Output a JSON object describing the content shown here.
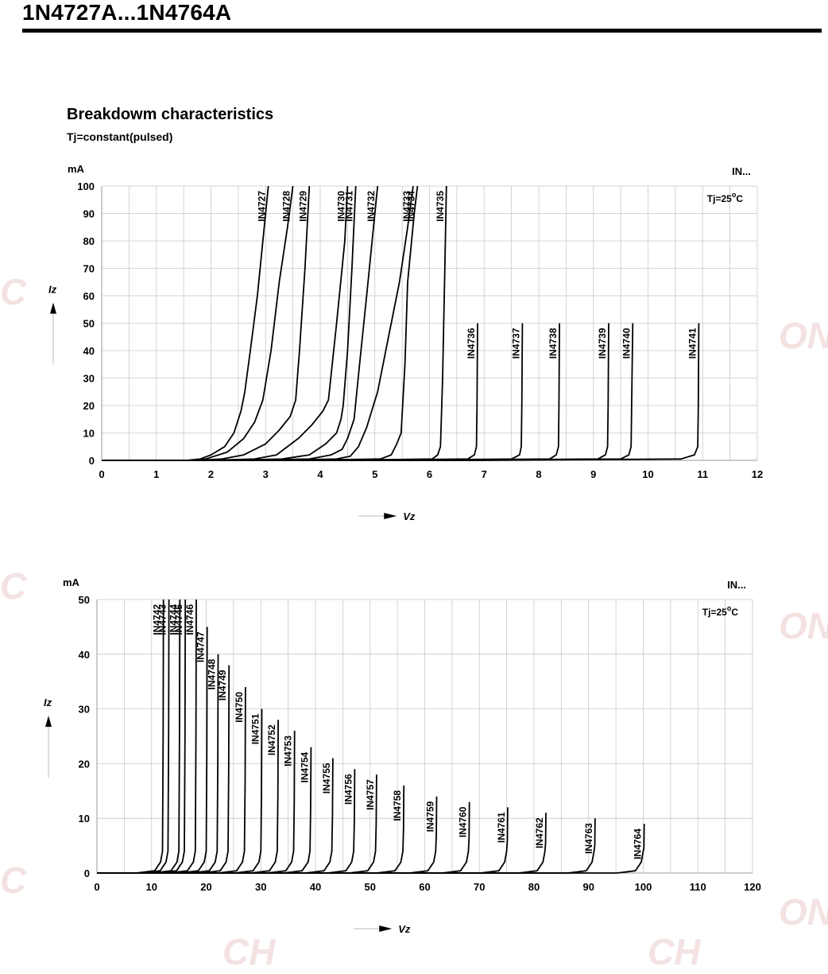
{
  "page": {
    "title": "1N4727A...1N4764A",
    "section_title": "Breakdowm characteristics",
    "section_subtitle": "Tj=constant(pulsed)",
    "watermarks": [
      "C",
      "ON",
      "C",
      "ON",
      "C",
      "ON",
      "CH",
      "CH"
    ]
  },
  "chart_data": [
    {
      "type": "line",
      "corner_label": "IN...",
      "condition": "Tj=25",
      "condition_sup": "o",
      "condition_unit": "C",
      "ylabel_unit": "mA",
      "ylabel": "Iz",
      "xlabel": "Vz",
      "xlim": [
        0,
        12
      ],
      "ylim": [
        0,
        100
      ],
      "xticks": [
        0,
        1,
        2,
        3,
        4,
        5,
        6,
        7,
        8,
        9,
        10,
        11,
        12
      ],
      "yticks": [
        0,
        10,
        20,
        30,
        40,
        50,
        60,
        70,
        80,
        90,
        100
      ],
      "series": [
        {
          "name": "IN4727",
          "vz": 3.0,
          "imax": 100,
          "curve": [
            [
              1.55,
              0
            ],
            [
              1.8,
              0.5
            ],
            [
              2.0,
              2
            ],
            [
              2.25,
              5
            ],
            [
              2.42,
              10
            ],
            [
              2.55,
              18
            ],
            [
              2.62,
              25
            ],
            [
              2.72,
              40
            ],
            [
              2.85,
              60
            ],
            [
              2.95,
              80
            ],
            [
              3.05,
              100
            ]
          ]
        },
        {
          "name": "IN4728",
          "vz": 3.3,
          "imax": 100,
          "curve": [
            [
              1.6,
              0
            ],
            [
              1.9,
              0.5
            ],
            [
              2.3,
              3
            ],
            [
              2.6,
              8
            ],
            [
              2.8,
              14
            ],
            [
              2.95,
              22
            ],
            [
              3.1,
              40
            ],
            [
              3.25,
              65
            ],
            [
              3.4,
              85
            ],
            [
              3.5,
              100
            ]
          ]
        },
        {
          "name": "IN4729",
          "vz": 3.6,
          "imax": 100,
          "curve": [
            [
              1.7,
              0
            ],
            [
              2.2,
              0.5
            ],
            [
              2.6,
              2
            ],
            [
              3.0,
              6
            ],
            [
              3.25,
              11
            ],
            [
              3.45,
              16
            ],
            [
              3.55,
              22
            ],
            [
              3.62,
              40
            ],
            [
              3.72,
              70
            ],
            [
              3.8,
              100
            ]
          ]
        },
        {
          "name": "IN4730",
          "vz": 3.9,
          "imax": 100,
          "curve": [
            [
              1.9,
              0
            ],
            [
              2.8,
              0.5
            ],
            [
              3.2,
              2
            ],
            [
              3.6,
              8
            ],
            [
              3.85,
              13
            ],
            [
              4.05,
              18
            ],
            [
              4.15,
              22
            ],
            [
              4.3,
              50
            ],
            [
              4.45,
              80
            ],
            [
              4.5,
              100
            ]
          ]
        },
        {
          "name": "IN4731",
          "vz": 4.3,
          "imax": 100,
          "curve": [
            [
              2.3,
              0
            ],
            [
              3.3,
              0.5
            ],
            [
              3.8,
              2
            ],
            [
              4.1,
              6
            ],
            [
              4.3,
              10
            ],
            [
              4.38,
              15
            ],
            [
              4.42,
              20
            ],
            [
              4.5,
              40
            ],
            [
              4.58,
              70
            ],
            [
              4.65,
              100
            ]
          ]
        },
        {
          "name": "IN4732",
          "vz": 4.7,
          "imax": 100,
          "curve": [
            [
              2.6,
              0
            ],
            [
              3.8,
              0.5
            ],
            [
              4.2,
              2
            ],
            [
              4.4,
              4
            ],
            [
              4.5,
              8
            ],
            [
              4.62,
              15
            ],
            [
              4.72,
              35
            ],
            [
              4.85,
              60
            ],
            [
              4.95,
              80
            ],
            [
              5.05,
              100
            ]
          ]
        },
        {
          "name": "IN4733",
          "vz": 5.1,
          "imax": 100,
          "curve": [
            [
              3.0,
              0
            ],
            [
              4.3,
              0.5
            ],
            [
              4.55,
              1.5
            ],
            [
              4.7,
              5
            ],
            [
              4.85,
              12
            ],
            [
              5.05,
              25
            ],
            [
              5.25,
              45
            ],
            [
              5.45,
              65
            ],
            [
              5.6,
              85
            ],
            [
              5.7,
              100
            ]
          ]
        },
        {
          "name": "IN4734",
          "vz": 5.6,
          "imax": 100,
          "curve": [
            [
              3.5,
              0
            ],
            [
              5.1,
              0.5
            ],
            [
              5.3,
              2
            ],
            [
              5.4,
              6
            ],
            [
              5.48,
              10
            ],
            [
              5.55,
              35
            ],
            [
              5.6,
              65
            ],
            [
              5.72,
              90
            ],
            [
              5.78,
              100
            ]
          ]
        },
        {
          "name": "IN4735",
          "vz": 6.2,
          "imax": 100,
          "curve": [
            [
              4.0,
              0
            ],
            [
              6.05,
              0.5
            ],
            [
              6.15,
              2
            ],
            [
              6.2,
              5
            ],
            [
              6.24,
              30
            ],
            [
              6.28,
              70
            ],
            [
              6.31,
              100
            ]
          ]
        },
        {
          "name": "IN4736",
          "vz": 6.8,
          "imax": 50,
          "curve": [
            [
              4.5,
              0
            ],
            [
              6.7,
              0.5
            ],
            [
              6.82,
              2
            ],
            [
              6.86,
              5
            ],
            [
              6.87,
              20
            ],
            [
              6.88,
              50
            ]
          ]
        },
        {
          "name": "IN4737",
          "vz": 7.5,
          "imax": 50,
          "curve": [
            [
              5.0,
              0
            ],
            [
              7.5,
              0.5
            ],
            [
              7.65,
              2
            ],
            [
              7.68,
              5
            ],
            [
              7.69,
              20
            ],
            [
              7.7,
              50
            ]
          ]
        },
        {
          "name": "IN4738",
          "vz": 8.2,
          "imax": 50,
          "curve": [
            [
              5.5,
              0
            ],
            [
              8.2,
              0.5
            ],
            [
              8.32,
              2
            ],
            [
              8.36,
              5
            ],
            [
              8.37,
              20
            ],
            [
              8.38,
              50
            ]
          ]
        },
        {
          "name": "IN4739",
          "vz": 9.1,
          "imax": 50,
          "curve": [
            [
              6.0,
              0
            ],
            [
              9.08,
              0.5
            ],
            [
              9.22,
              2
            ],
            [
              9.26,
              5
            ],
            [
              9.27,
              20
            ],
            [
              9.28,
              50
            ]
          ]
        },
        {
          "name": "IN4740",
          "vz": 10,
          "imax": 50,
          "curve": [
            [
              6.5,
              0
            ],
            [
              9.5,
              0.5
            ],
            [
              9.65,
              2
            ],
            [
              9.69,
              5
            ],
            [
              9.7,
              20
            ],
            [
              9.72,
              50
            ]
          ]
        },
        {
          "name": "IN4741",
          "vz": 11,
          "imax": 50,
          "curve": [
            [
              7.0,
              0
            ],
            [
              10.6,
              0.5
            ],
            [
              10.85,
              2
            ],
            [
              10.91,
              5
            ],
            [
              10.92,
              20
            ],
            [
              10.93,
              50
            ]
          ]
        }
      ]
    },
    {
      "type": "line",
      "corner_label": "IN...",
      "condition": "Tj=25",
      "condition_sup": "o",
      "condition_unit": "C",
      "ylabel_unit": "mA",
      "ylabel": "Iz",
      "xlabel": "Vz",
      "xlim": [
        0,
        120
      ],
      "ylim": [
        0,
        50
      ],
      "xticks": [
        0,
        10,
        20,
        30,
        40,
        50,
        60,
        70,
        80,
        90,
        100,
        110,
        120
      ],
      "yticks": [
        0,
        10,
        20,
        30,
        40,
        50
      ],
      "series": [
        {
          "name": "IN4742",
          "vz": 12,
          "imax": 50
        },
        {
          "name": "IN4743",
          "vz": 13,
          "imax": 50
        },
        {
          "name": "IN4744",
          "vz": 15,
          "imax": 50
        },
        {
          "name": "IN4745",
          "vz": 16,
          "imax": 50
        },
        {
          "name": "IN4746",
          "vz": 18,
          "imax": 50
        },
        {
          "name": "IN4747",
          "vz": 20,
          "imax": 45
        },
        {
          "name": "IN4748",
          "vz": 22,
          "imax": 40
        },
        {
          "name": "IN4749",
          "vz": 24,
          "imax": 38
        },
        {
          "name": "IN4750",
          "vz": 27,
          "imax": 34
        },
        {
          "name": "IN4751",
          "vz": 30,
          "imax": 30
        },
        {
          "name": "IN4752",
          "vz": 33,
          "imax": 28
        },
        {
          "name": "IN4753",
          "vz": 36,
          "imax": 26
        },
        {
          "name": "IN4754",
          "vz": 39,
          "imax": 23
        },
        {
          "name": "IN4755",
          "vz": 43,
          "imax": 21
        },
        {
          "name": "IN4756",
          "vz": 47,
          "imax": 19
        },
        {
          "name": "IN4757",
          "vz": 51,
          "imax": 18
        },
        {
          "name": "IN4758",
          "vz": 56,
          "imax": 16
        },
        {
          "name": "IN4759",
          "vz": 62,
          "imax": 14
        },
        {
          "name": "IN4760",
          "vz": 68,
          "imax": 13
        },
        {
          "name": "IN4761",
          "vz": 75,
          "imax": 12
        },
        {
          "name": "IN4762",
          "vz": 82,
          "imax": 11
        },
        {
          "name": "IN4763",
          "vz": 91,
          "imax": 10
        },
        {
          "name": "IN4764",
          "vz": 100,
          "imax": 9
        }
      ]
    }
  ]
}
